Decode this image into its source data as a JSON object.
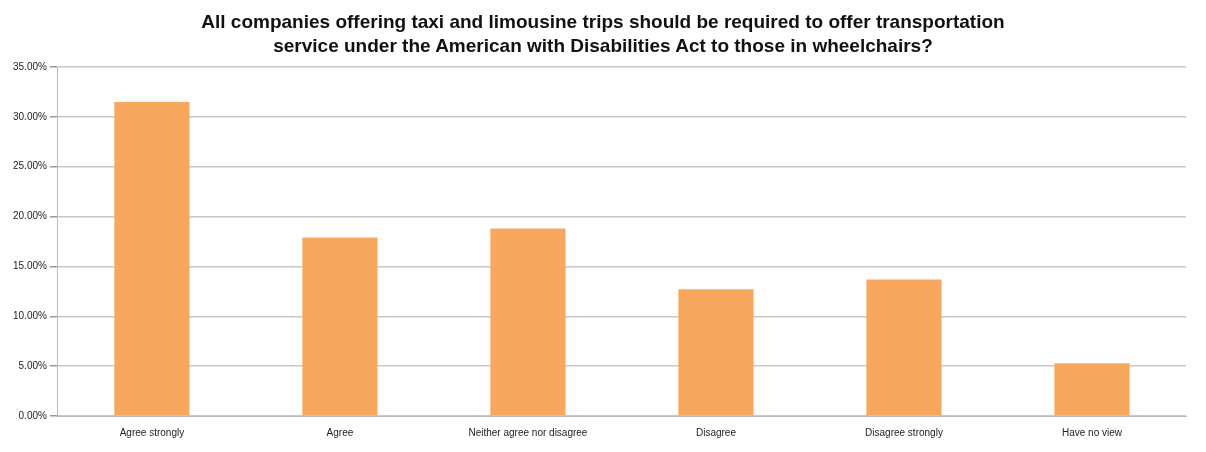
{
  "chart_data": {
    "type": "bar",
    "title": "All companies offering taxi and limousine trips should be required to offer transportation service under the American with Disabilities Act to those in wheelchairs?",
    "categories": [
      "Agree strongly",
      "Agree",
      "Neither agree nor disagree",
      "Disagree",
      "Disagree strongly",
      "Have no view"
    ],
    "values": [
      31.5,
      17.9,
      18.8,
      12.7,
      13.7,
      5.3
    ],
    "color": "#f7a75e",
    "ylim": [
      0,
      35
    ],
    "yticks": [
      {
        "value": 0,
        "label": "0.00%"
      },
      {
        "value": 5,
        "label": "5.00%"
      },
      {
        "value": 10,
        "label": "10.00%"
      },
      {
        "value": 15,
        "label": "15.00%"
      },
      {
        "value": 20,
        "label": "20.00%"
      },
      {
        "value": 25,
        "label": "25.00%"
      },
      {
        "value": 30,
        "label": "30.00%"
      },
      {
        "value": 35,
        "label": "35.00%"
      }
    ],
    "grid": "y",
    "legend": false
  }
}
